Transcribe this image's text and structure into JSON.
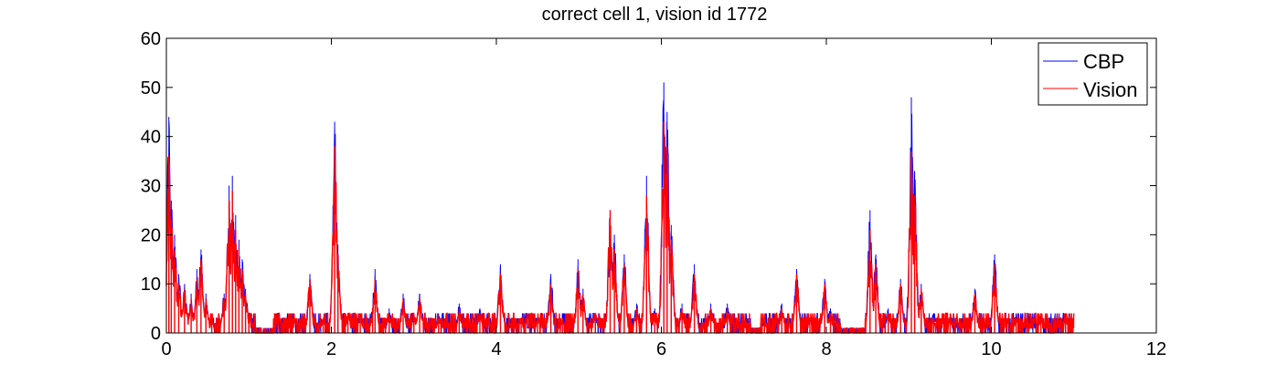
{
  "chart_data": {
    "type": "line",
    "title": "correct cell 1, vision id 1772",
    "xlabel": "",
    "ylabel": "",
    "xlim": [
      0,
      12
    ],
    "ylim": [
      0,
      60
    ],
    "x_ticks": [
      "0",
      "2",
      "4",
      "6",
      "8",
      "10",
      "12"
    ],
    "y_ticks": [
      "0",
      "10",
      "20",
      "30",
      "40",
      "50",
      "60"
    ],
    "grid": false,
    "legend_position": "top-right",
    "x_end": 11.0,
    "series": [
      {
        "name": "CBP",
        "color": "#0000ff",
        "peaks": [
          [
            0.03,
            44
          ],
          [
            0.06,
            27
          ],
          [
            0.1,
            20
          ],
          [
            0.15,
            12
          ],
          [
            0.22,
            10
          ],
          [
            0.3,
            8
          ],
          [
            0.37,
            13
          ],
          [
            0.42,
            17
          ],
          [
            0.48,
            8
          ],
          [
            0.55,
            3
          ],
          [
            0.65,
            2
          ],
          [
            0.7,
            8
          ],
          [
            0.76,
            30
          ],
          [
            0.8,
            32
          ],
          [
            0.84,
            24
          ],
          [
            0.88,
            19
          ],
          [
            0.92,
            15
          ],
          [
            0.96,
            9
          ],
          [
            1.0,
            4
          ],
          [
            1.2,
            1
          ],
          [
            1.5,
            2
          ],
          [
            1.74,
            12
          ],
          [
            1.9,
            3
          ],
          [
            2.04,
            43
          ],
          [
            2.08,
            18
          ],
          [
            2.2,
            4
          ],
          [
            2.35,
            4
          ],
          [
            2.5,
            5
          ],
          [
            2.53,
            13
          ],
          [
            2.7,
            5
          ],
          [
            2.87,
            8
          ],
          [
            3.0,
            4
          ],
          [
            3.07,
            8
          ],
          [
            3.3,
            4
          ],
          [
            3.55,
            6
          ],
          [
            3.8,
            5
          ],
          [
            4.05,
            14
          ],
          [
            4.3,
            3
          ],
          [
            4.5,
            3
          ],
          [
            4.66,
            12
          ],
          [
            4.8,
            3
          ],
          [
            4.99,
            15
          ],
          [
            5.05,
            9
          ],
          [
            5.2,
            4
          ],
          [
            5.38,
            25
          ],
          [
            5.43,
            20
          ],
          [
            5.55,
            16
          ],
          [
            5.7,
            6
          ],
          [
            5.82,
            32
          ],
          [
            5.92,
            5
          ],
          [
            6.03,
            51
          ],
          [
            6.07,
            45
          ],
          [
            6.12,
            22
          ],
          [
            6.25,
            6
          ],
          [
            6.4,
            14
          ],
          [
            6.6,
            6
          ],
          [
            6.8,
            6
          ],
          [
            7.0,
            2
          ],
          [
            7.25,
            3
          ],
          [
            7.46,
            6
          ],
          [
            7.64,
            13
          ],
          [
            7.8,
            3
          ],
          [
            7.98,
            11
          ],
          [
            8.05,
            5
          ],
          [
            8.15,
            1
          ],
          [
            8.53,
            25
          ],
          [
            8.6,
            16
          ],
          [
            8.75,
            5
          ],
          [
            8.9,
            11
          ],
          [
            9.03,
            48
          ],
          [
            9.07,
            33
          ],
          [
            9.15,
            10
          ],
          [
            9.3,
            4
          ],
          [
            9.5,
            4
          ],
          [
            9.8,
            9
          ],
          [
            10.04,
            16
          ],
          [
            10.3,
            4
          ],
          [
            10.6,
            4
          ],
          [
            10.9,
            4
          ]
        ]
      },
      {
        "name": "Vision",
        "color": "#ff0000",
        "peaks": [
          [
            0.03,
            36
          ],
          [
            0.06,
            23
          ],
          [
            0.1,
            17
          ],
          [
            0.15,
            10
          ],
          [
            0.22,
            9
          ],
          [
            0.3,
            7
          ],
          [
            0.37,
            11
          ],
          [
            0.42,
            15
          ],
          [
            0.48,
            7
          ],
          [
            0.55,
            3
          ],
          [
            0.65,
            2
          ],
          [
            0.7,
            7
          ],
          [
            0.76,
            27
          ],
          [
            0.8,
            29
          ],
          [
            0.84,
            21
          ],
          [
            0.88,
            17
          ],
          [
            0.92,
            13
          ],
          [
            0.96,
            8
          ],
          [
            1.0,
            3
          ],
          [
            1.2,
            1
          ],
          [
            1.5,
            2
          ],
          [
            1.74,
            11
          ],
          [
            1.9,
            3
          ],
          [
            2.04,
            38
          ],
          [
            2.08,
            16
          ],
          [
            2.2,
            4
          ],
          [
            2.35,
            4
          ],
          [
            2.5,
            4
          ],
          [
            2.53,
            11
          ],
          [
            2.7,
            4
          ],
          [
            2.87,
            7
          ],
          [
            3.0,
            4
          ],
          [
            3.07,
            7
          ],
          [
            3.3,
            3
          ],
          [
            3.55,
            5
          ],
          [
            3.8,
            4
          ],
          [
            4.05,
            12
          ],
          [
            4.3,
            3
          ],
          [
            4.5,
            3
          ],
          [
            4.66,
            10
          ],
          [
            4.8,
            3
          ],
          [
            4.99,
            13
          ],
          [
            5.05,
            8
          ],
          [
            5.2,
            4
          ],
          [
            5.38,
            25
          ],
          [
            5.43,
            17
          ],
          [
            5.55,
            14
          ],
          [
            5.7,
            5
          ],
          [
            5.82,
            28
          ],
          [
            5.92,
            4
          ],
          [
            6.03,
            43
          ],
          [
            6.07,
            38
          ],
          [
            6.12,
            19
          ],
          [
            6.25,
            5
          ],
          [
            6.4,
            12
          ],
          [
            6.6,
            5
          ],
          [
            6.8,
            5
          ],
          [
            7.0,
            2
          ],
          [
            7.25,
            3
          ],
          [
            7.46,
            5
          ],
          [
            7.64,
            12
          ],
          [
            7.8,
            3
          ],
          [
            7.98,
            10
          ],
          [
            8.05,
            4
          ],
          [
            8.15,
            1
          ],
          [
            8.53,
            21
          ],
          [
            8.6,
            14
          ],
          [
            8.75,
            4
          ],
          [
            8.9,
            10
          ],
          [
            9.03,
            37
          ],
          [
            9.07,
            28
          ],
          [
            9.15,
            9
          ],
          [
            9.3,
            3
          ],
          [
            9.5,
            3
          ],
          [
            9.8,
            8
          ],
          [
            10.04,
            14
          ],
          [
            10.3,
            3
          ],
          [
            10.6,
            3
          ],
          [
            10.9,
            3
          ]
        ]
      }
    ]
  }
}
